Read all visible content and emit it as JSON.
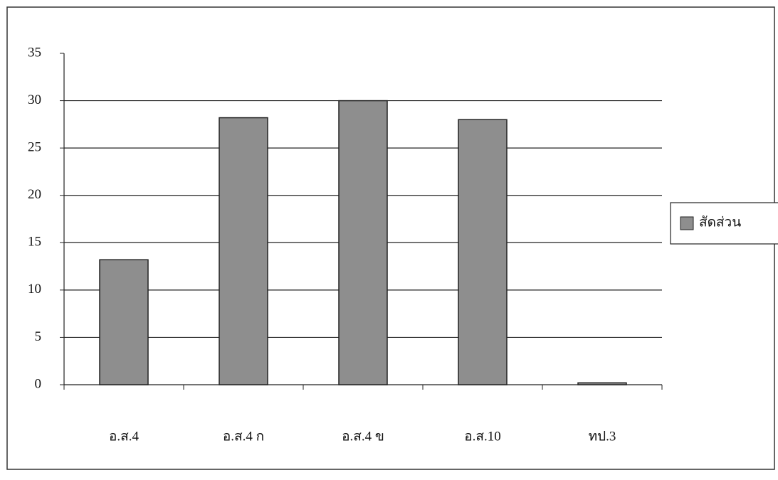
{
  "chart_data": {
    "type": "bar",
    "categories": [
      "อ.ส.4",
      "อ.ส.4 ก",
      "อ.ส.4 ข",
      "อ.ส.10",
      "ทป.3"
    ],
    "series": [
      {
        "name": "สัดส่วน",
        "color": "#8e8e8e",
        "values": [
          13.2,
          28.2,
          30,
          28,
          0.2
        ]
      }
    ],
    "ylim": [
      0,
      35
    ],
    "yticks": [
      0,
      5,
      10,
      15,
      20,
      25,
      30,
      35
    ],
    "grid": true,
    "legend": "right"
  }
}
